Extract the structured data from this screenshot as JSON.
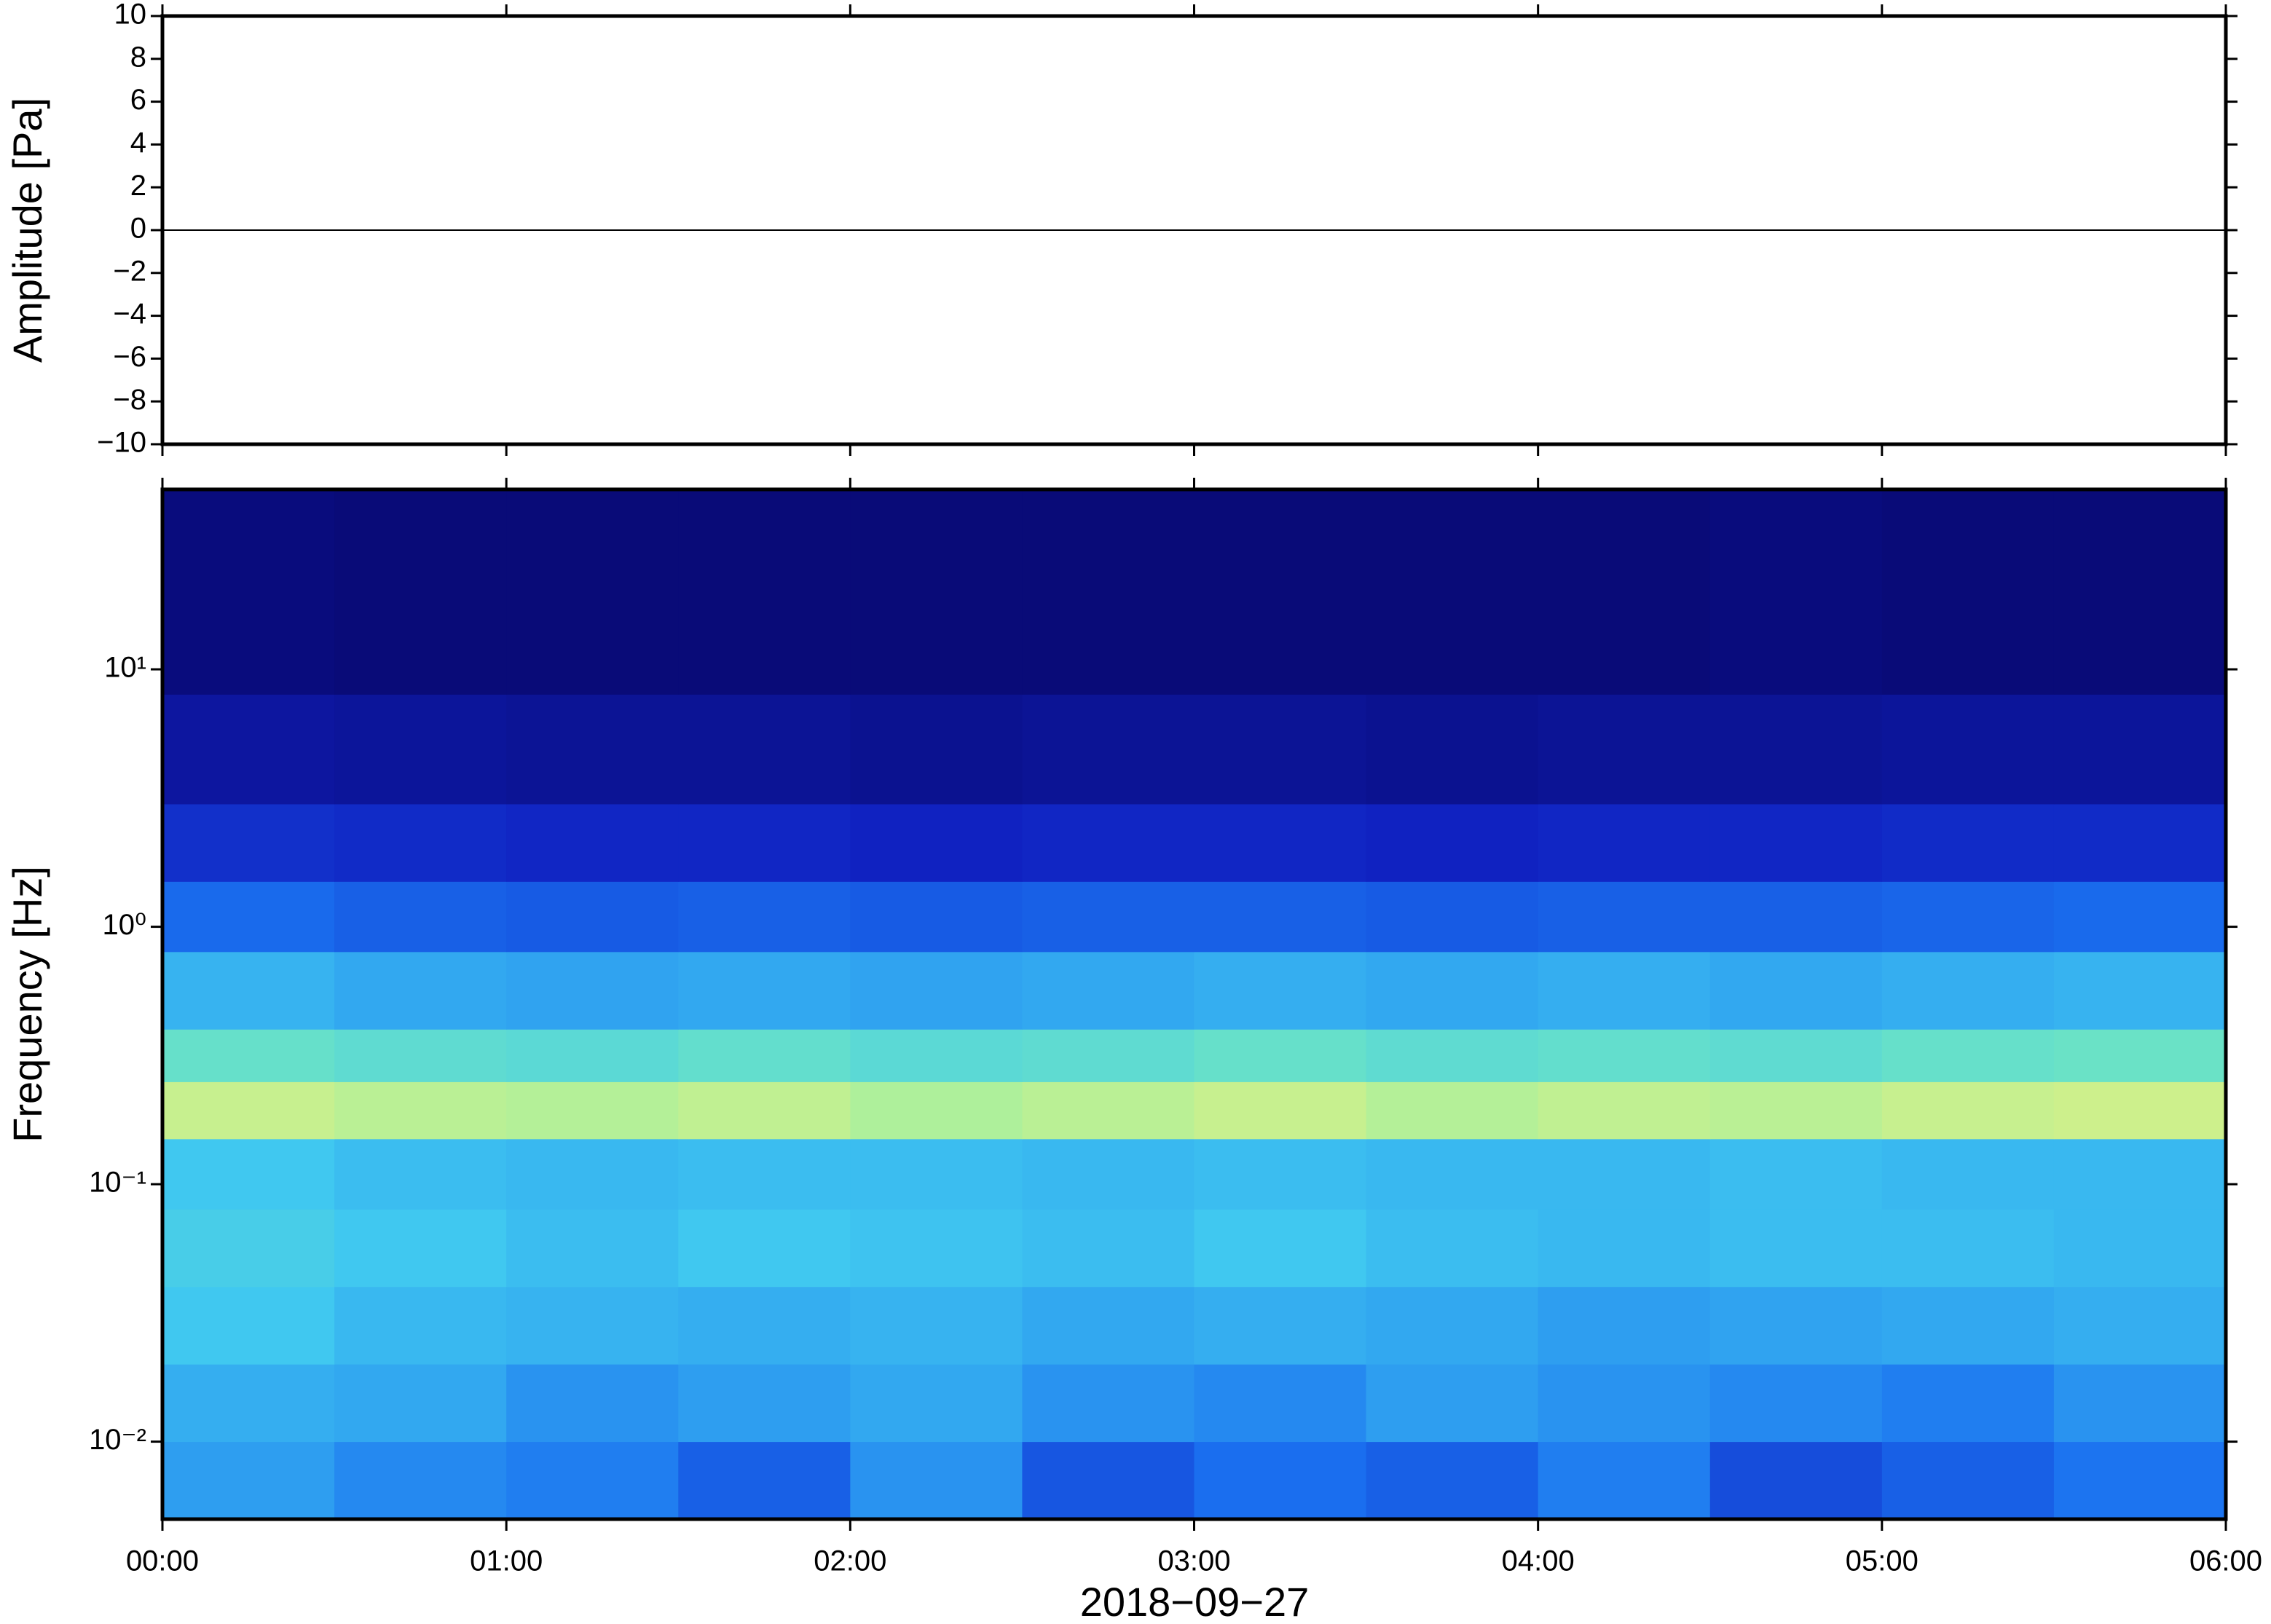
{
  "chart_data": [
    {
      "type": "line",
      "ylabel": "Amplitude [Pa]",
      "x": [
        0,
        6
      ],
      "series": [
        {
          "color": "#000000",
          "values": [
            0,
            0
          ]
        }
      ],
      "xlim": [
        0,
        6
      ],
      "ylim": [
        -10,
        10
      ],
      "yticks": [
        {
          "value": -10,
          "label": "−10"
        },
        {
          "value": -8,
          "label": "−8"
        },
        {
          "value": -6,
          "label": "−6"
        },
        {
          "value": -4,
          "label": "−4"
        },
        {
          "value": -2,
          "label": "−2"
        },
        0,
        2,
        4,
        6,
        8,
        10
      ]
    },
    {
      "type": "heatmap",
      "ylabel": "Frequency [Hz]",
      "xlabel": "2018−09−27",
      "xlim": [
        0,
        6
      ],
      "ylim": [
        0.005,
        50
      ],
      "log_scale": true,
      "xticks": [
        {
          "value": 0,
          "label": "00:00"
        },
        {
          "value": 1,
          "label": "01:00"
        },
        {
          "value": 2,
          "label": "02:00"
        },
        {
          "value": 3,
          "label": "03:00"
        },
        {
          "value": 4,
          "label": "04:00"
        },
        {
          "value": 5,
          "label": "05:00"
        },
        {
          "value": 6,
          "label": "06:00"
        }
      ],
      "yticks": [
        {
          "value": 0.01,
          "label": "10⁻²"
        },
        {
          "value": 0.1,
          "label": "10⁻¹"
        },
        {
          "value": 1,
          "label": "10⁰"
        },
        {
          "value": 10,
          "label": "10¹"
        }
      ],
      "xbins": [
        0,
        0.5,
        1,
        1.5,
        2,
        2.5,
        3,
        3.5,
        4,
        4.5,
        5,
        5.5,
        6
      ],
      "ybins": [
        0.005,
        0.01,
        0.02,
        0.04,
        0.08,
        0.15,
        0.25,
        0.4,
        0.8,
        1.5,
        3,
        8,
        50
      ],
      "colormap": [
        "#08086e",
        "#1020c0",
        "#1a70f0",
        "#40c8f0",
        "#80f0b0",
        "#e8f080",
        "#f8a040"
      ],
      "zlim": [
        0,
        1
      ],
      "values": [
        [
          0.42,
          0.38,
          0.36,
          0.3,
          0.4,
          0.28,
          0.33,
          0.3,
          0.36,
          0.26,
          0.3,
          0.34
        ],
        [
          0.45,
          0.44,
          0.4,
          0.42,
          0.44,
          0.4,
          0.38,
          0.42,
          0.4,
          0.38,
          0.36,
          0.4
        ],
        [
          0.5,
          0.47,
          0.46,
          0.45,
          0.46,
          0.44,
          0.45,
          0.44,
          0.42,
          0.43,
          0.44,
          0.45
        ],
        [
          0.52,
          0.5,
          0.48,
          0.5,
          0.49,
          0.48,
          0.5,
          0.48,
          0.47,
          0.48,
          0.48,
          0.47
        ],
        [
          0.5,
          0.48,
          0.47,
          0.48,
          0.48,
          0.47,
          0.48,
          0.47,
          0.47,
          0.48,
          0.47,
          0.47
        ],
        [
          0.78,
          0.76,
          0.75,
          0.77,
          0.74,
          0.76,
          0.78,
          0.75,
          0.77,
          0.76,
          0.78,
          0.79
        ],
        [
          0.6,
          0.58,
          0.57,
          0.59,
          0.57,
          0.58,
          0.6,
          0.58,
          0.59,
          0.58,
          0.6,
          0.61
        ],
        [
          0.46,
          0.44,
          0.43,
          0.44,
          0.43,
          0.44,
          0.45,
          0.44,
          0.45,
          0.44,
          0.45,
          0.46
        ],
        [
          0.32,
          0.3,
          0.29,
          0.3,
          0.29,
          0.3,
          0.3,
          0.29,
          0.3,
          0.3,
          0.31,
          0.32
        ],
        [
          0.2,
          0.19,
          0.18,
          0.18,
          0.17,
          0.18,
          0.18,
          0.17,
          0.18,
          0.18,
          0.19,
          0.19
        ],
        [
          0.1,
          0.09,
          0.08,
          0.08,
          0.07,
          0.08,
          0.08,
          0.07,
          0.08,
          0.08,
          0.09,
          0.09
        ],
        [
          0.03,
          0.02,
          0.02,
          0.02,
          0.02,
          0.02,
          0.02,
          0.02,
          0.02,
          0.03,
          0.02,
          0.02
        ]
      ]
    }
  ]
}
